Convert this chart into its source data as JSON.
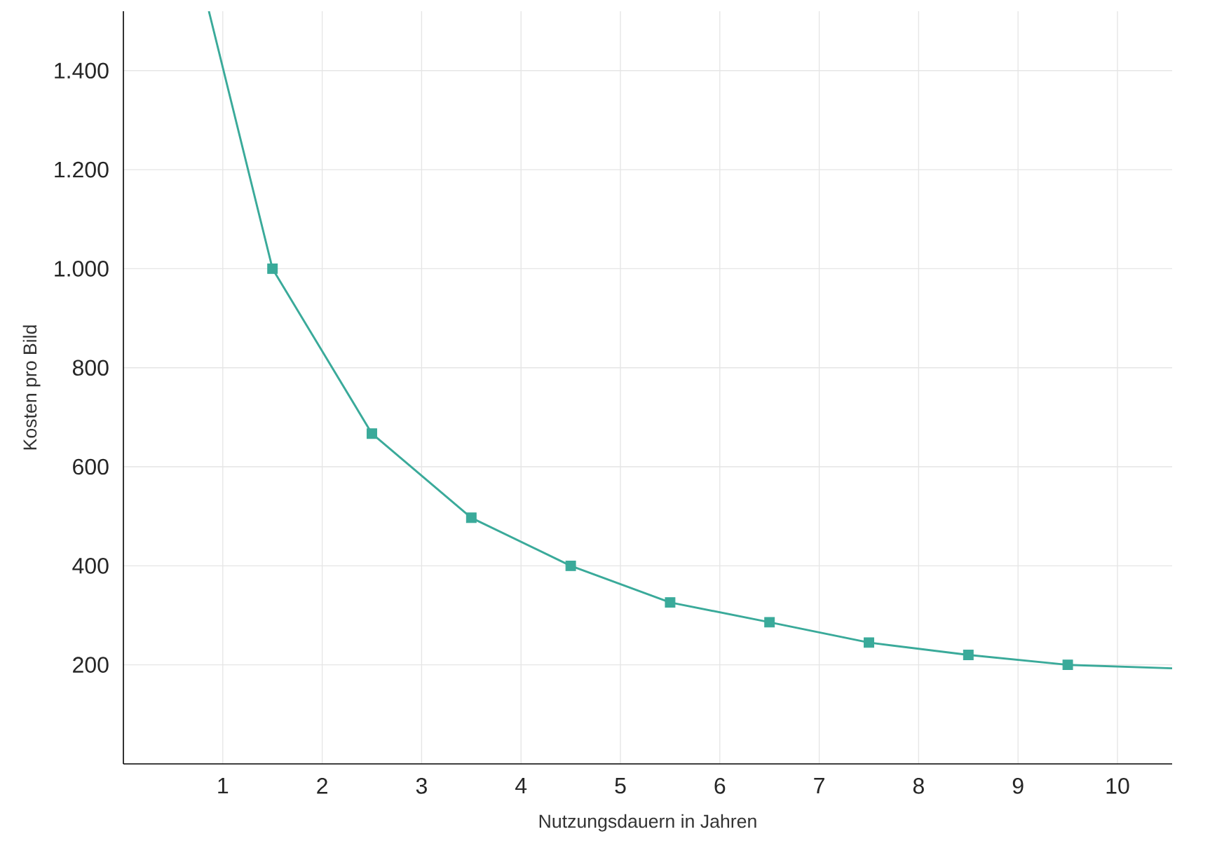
{
  "chart_data": {
    "type": "line",
    "xlabel": "Nutzungsdauern in Jahren",
    "ylabel": "Kosten pro Bild",
    "xlim": [
      0,
      10.55
    ],
    "ylim": [
      0,
      1520
    ],
    "xticks": [
      1,
      2,
      3,
      4,
      5,
      6,
      7,
      8,
      9,
      10
    ],
    "yticks": [
      {
        "value": 200,
        "label": "200"
      },
      {
        "value": 400,
        "label": "400"
      },
      {
        "value": 600,
        "label": "600"
      },
      {
        "value": 800,
        "label": "800"
      },
      {
        "value": 1000,
        "label": "1.000"
      },
      {
        "value": 1200,
        "label": "1.200"
      },
      {
        "value": 1400,
        "label": "1.400"
      }
    ],
    "grid": true,
    "series": [
      {
        "color": "#3aaa9a",
        "marker": "none",
        "x": [
          0.86,
          1.5,
          2.5,
          3.5,
          4.5,
          5.5,
          6.5,
          7.5,
          8.5,
          9.5,
          10.55
        ],
        "values": [
          1520,
          1000,
          667,
          497,
          400,
          326,
          286,
          245,
          220,
          200,
          193
        ]
      },
      {
        "type": "scatter",
        "color": "#3aaa9a",
        "marker": "square",
        "x": [
          1.5,
          2.5,
          3.5,
          4.5,
          5.5,
          6.5,
          7.5,
          8.5,
          9.5
        ],
        "values": [
          1000,
          667,
          497,
          400,
          326,
          286,
          245,
          220,
          200
        ]
      }
    ]
  }
}
